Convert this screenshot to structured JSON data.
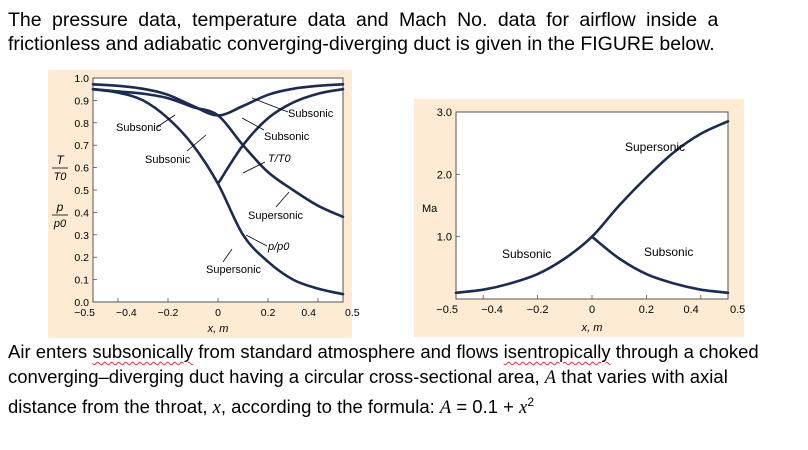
{
  "intro": {
    "line1": "The pressure data, temperature data and Mach No. data for airflow inside a",
    "line2": "frictionless and adiabatic converging-diverging duct is given in the FIGURE below."
  },
  "chart_data": [
    {
      "type": "line",
      "title": "",
      "xlabel": "x, m",
      "xlim": [
        -0.5,
        0.5
      ],
      "ylim": [
        0.0,
        1.0
      ],
      "x_ticks": [
        "−0.5",
        "−0.4",
        "−0.2",
        "0",
        "0.2",
        "0.4",
        "0.5"
      ],
      "y_ticks": [
        "0.0",
        "0.1",
        "0.2",
        "0.3",
        "0.4",
        "0.5",
        "0.6",
        "0.7",
        "0.8",
        "0.9",
        "1.0"
      ],
      "ylabel_T": {
        "num": "T",
        "den": "T0"
      },
      "ylabel_p": {
        "num": "p",
        "den": "p0"
      },
      "labels": {
        "subsonic_a": "Subsonic",
        "subsonic_b": "Subsonic",
        "subsonic_c": "Subsonic",
        "subsonic_d": "Subsonic",
        "t_ratio": "T/T0",
        "supersonic_a": "Supersonic",
        "p_ratio": "p/p0",
        "supersonic_b": "Supersonic"
      },
      "series": [
        {
          "x": [
            -0.5,
            -0.4,
            -0.3,
            -0.2,
            -0.1,
            0.0,
            0.1,
            0.2,
            0.3,
            0.4,
            0.5
          ],
          "y": [
            0.972,
            0.965,
            0.952,
            0.925,
            0.875,
            0.833,
            0.875,
            0.925,
            0.952,
            0.965,
            0.972
          ]
        },
        {
          "x": [
            -0.5,
            -0.4,
            -0.3,
            -0.2,
            -0.1,
            0.0,
            0.1,
            0.2,
            0.3,
            0.4,
            0.5
          ],
          "y": [
            0.95,
            0.935,
            0.9,
            0.82,
            0.7,
            0.528,
            0.3,
            0.18,
            0.1,
            0.06,
            0.035
          ]
        },
        {
          "x": [
            -0.5,
            -0.4,
            -0.3,
            -0.2,
            -0.1,
            0.0,
            0.1,
            0.2,
            0.3,
            0.4,
            0.5
          ],
          "y": [
            0.95,
            0.94,
            0.93,
            0.91,
            0.87,
            0.833,
            0.7,
            0.58,
            0.5,
            0.43,
            0.38
          ]
        },
        {
          "x": [
            0.0,
            0.1,
            0.2,
            0.3,
            0.4,
            0.5
          ],
          "y": [
            0.528,
            0.7,
            0.82,
            0.89,
            0.93,
            0.95
          ]
        }
      ]
    },
    {
      "type": "line",
      "title": "",
      "xlabel": "x, m",
      "ylabel": "Ma",
      "xlim": [
        -0.5,
        0.5
      ],
      "ylim": [
        0.0,
        3.0
      ],
      "x_ticks": [
        "−0.5",
        "−0.4",
        "−0.2",
        "0",
        "0.2",
        "0.4",
        "0.5"
      ],
      "y_ticks": [
        "1.0",
        "2.0",
        "3.0"
      ],
      "labels": {
        "supersonic": "Supersonic",
        "subsonic_left": "Subsonic",
        "subsonic_right": "Subsonic"
      },
      "series": [
        {
          "x": [
            -0.5,
            -0.4,
            -0.3,
            -0.2,
            -0.1,
            0.0,
            0.1,
            0.2,
            0.3,
            0.4,
            0.5
          ],
          "y": [
            0.1,
            0.15,
            0.25,
            0.4,
            0.65,
            1.0,
            1.5,
            1.95,
            2.35,
            2.65,
            2.85
          ]
        },
        {
          "x": [
            0.0,
            0.1,
            0.2,
            0.3,
            0.4,
            0.5
          ],
          "y": [
            1.0,
            0.65,
            0.4,
            0.25,
            0.15,
            0.1
          ]
        }
      ]
    }
  ],
  "bottom": {
    "p1": "Air enters ",
    "w1": "subsonically",
    "p2": " from standard atmosphere and flows ",
    "w2": "isentropically",
    "p3": " through a choked converging–diverging duct having a circular cross-sectional area, ",
    "sym_A": "A",
    "p4": " that varies with axial distance from the throat, ",
    "sym_x": "x",
    "p5": ", according to the formula:  ",
    "formula_A": "A",
    "formula_mid": " = 0.1 + ",
    "formula_x": "x",
    "formula_exp": "2"
  }
}
